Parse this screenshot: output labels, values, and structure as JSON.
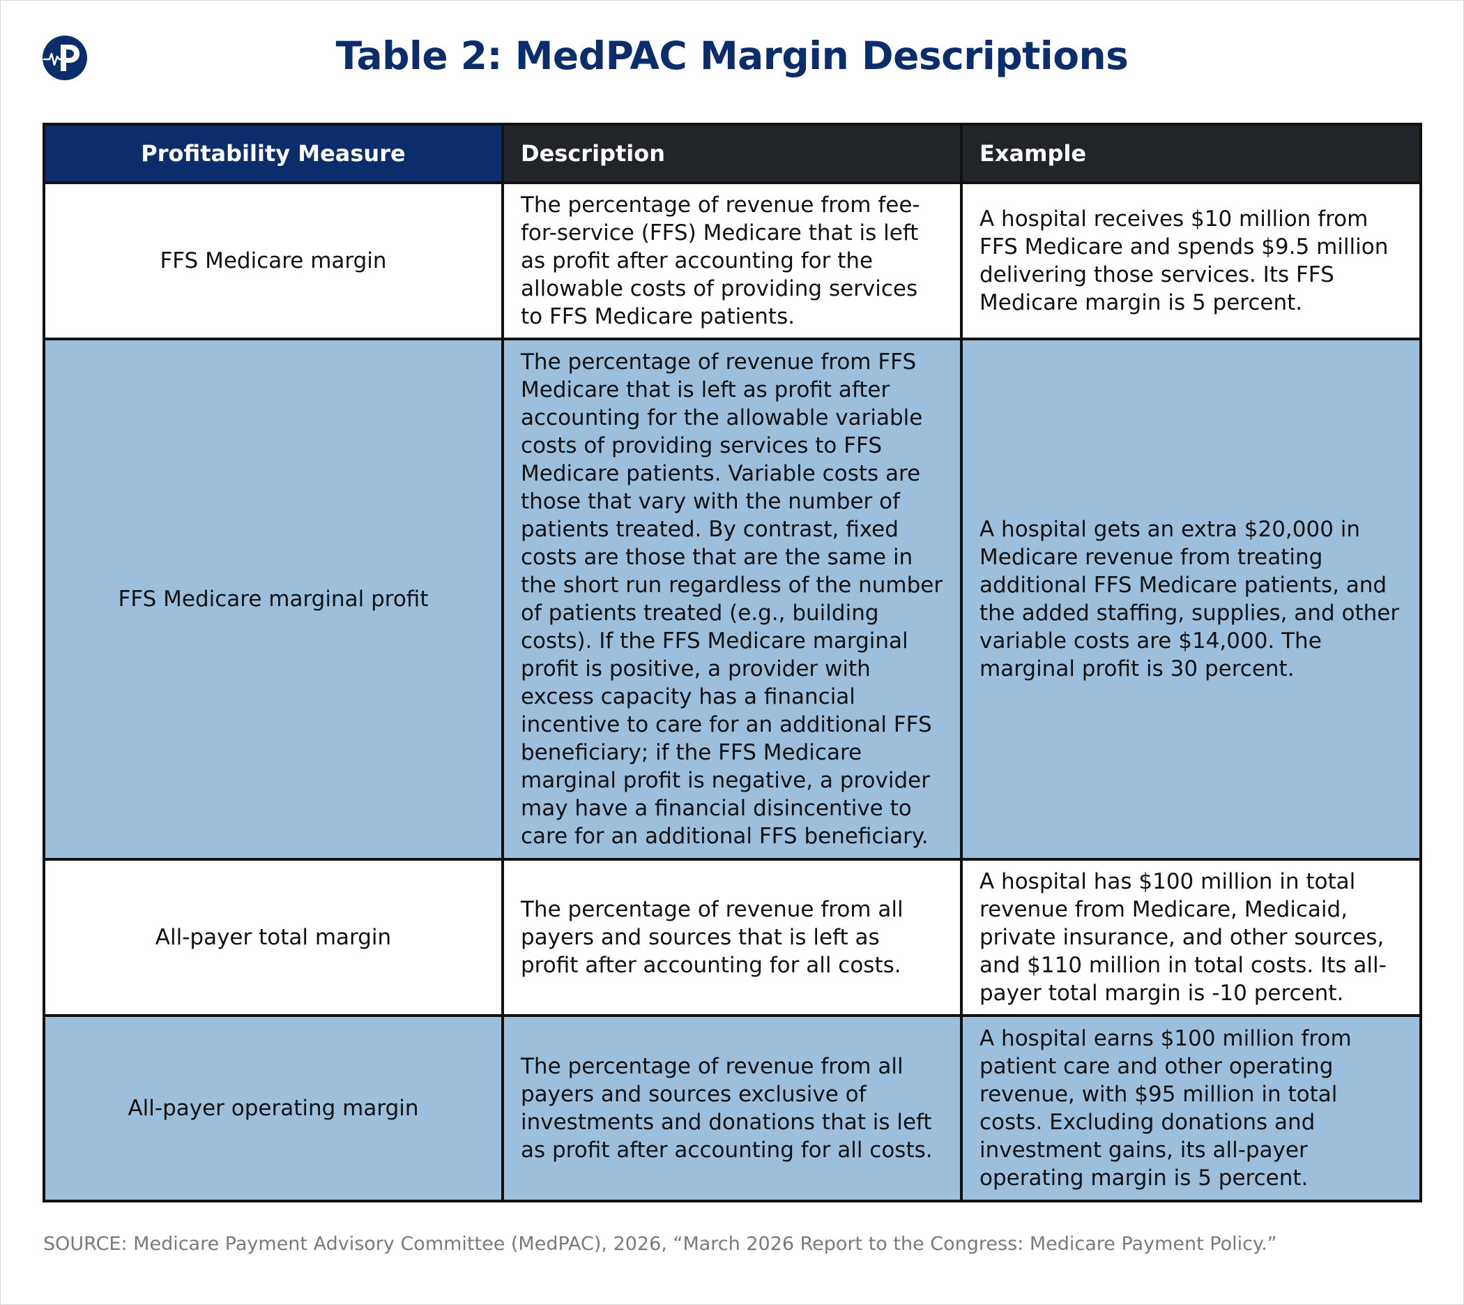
{
  "brand": {
    "logo_icon": "heartbeat-p-logo-icon",
    "logo_color": "#0c2d6b"
  },
  "title": "Table 2: MedPAC Margin Descriptions",
  "table": {
    "headers": {
      "measure": "Profitability Measure",
      "description": "Description",
      "example": "Example"
    },
    "rows": [
      {
        "measure": "FFS Medicare margin",
        "description": "The percentage of revenue from fee-for-service (FFS) Medicare that is left as profit after accounting for the allowable costs of providing services to FFS Medicare patients.",
        "example": "A hospital receives $10 million from FFS Medicare and spends $9.5 million delivering those services. Its FFS Medicare margin is 5 percent."
      },
      {
        "measure": "FFS Medicare marginal profit",
        "description": "The percentage of revenue from FFS Medicare that is left as profit after accounting for the allowable variable costs of providing services to FFS Medicare patients. Variable costs are those that vary with the number of patients treated. By contrast, fixed costs are those that are the same in the short run regardless of the number of patients treated (e.g., building costs). If the FFS Medicare marginal profit is positive, a provider with excess capacity has a financial incentive to care for an additional FFS beneficiary; if the FFS Medicare marginal profit is negative, a provider may have a financial disincentive to care for an additional FFS beneficiary.",
        "example": "A hospital gets an extra $20,000 in Medicare revenue from treating additional FFS Medicare patients, and the added staffing, supplies, and other variable costs are $14,000. The marginal profit is 30 percent."
      },
      {
        "measure": "All-payer total margin",
        "description": "The percentage of revenue from all payers and sources that is left as profit after accounting for all costs.",
        "example": "A hospital has $100 million in total revenue from Medicare, Medicaid, private insurance, and other sources, and $110 million in total costs. Its all-payer total margin is -10 percent."
      },
      {
        "measure": "All-payer operating margin",
        "description": "The percentage of revenue from all payers and sources exclusive of investments and donations that is left as profit after accounting for all costs.",
        "example": "A hospital earns $100 million from patient care and other operating revenue, with $95 million in total costs. Excluding donations and investment gains, its all-payer operating margin is 5 percent."
      }
    ]
  },
  "source": "SOURCE: Medicare Payment Advisory Committee (MedPAC), 2026, “March 2026 Report to the Congress: Medicare Payment Policy.”",
  "colors": {
    "navy": "#0c2d6b",
    "header_dark": "#212529",
    "row_shade": "#9cc0db",
    "source_gray": "#7a7a7a"
  }
}
